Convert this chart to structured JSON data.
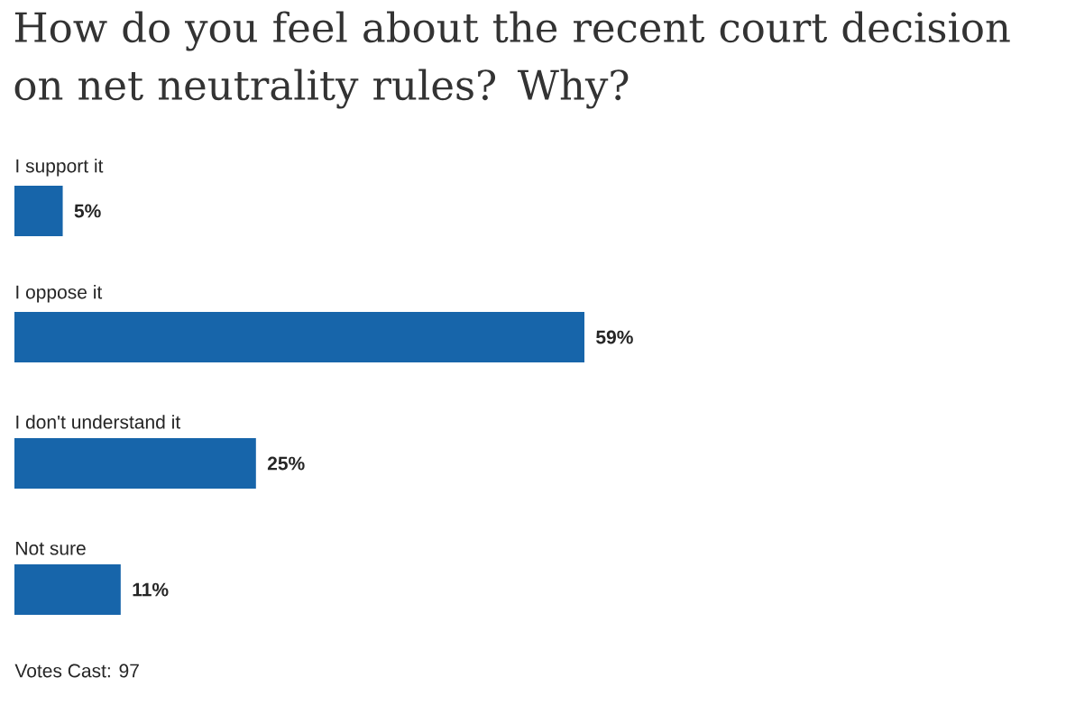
{
  "chart_data": {
    "type": "bar",
    "orientation": "horizontal",
    "title": "How do you feel about the recent court decision on net neutrality rules? Why?",
    "categories": [
      "I support it",
      "I oppose it",
      "I don't understand it",
      "Not sure"
    ],
    "values": [
      5,
      59,
      25,
      11
    ],
    "value_labels": [
      "5%",
      "59%",
      "25%",
      "11%"
    ],
    "color": "#1765aa",
    "annotations": [
      "Votes Cast: 97"
    ]
  }
}
